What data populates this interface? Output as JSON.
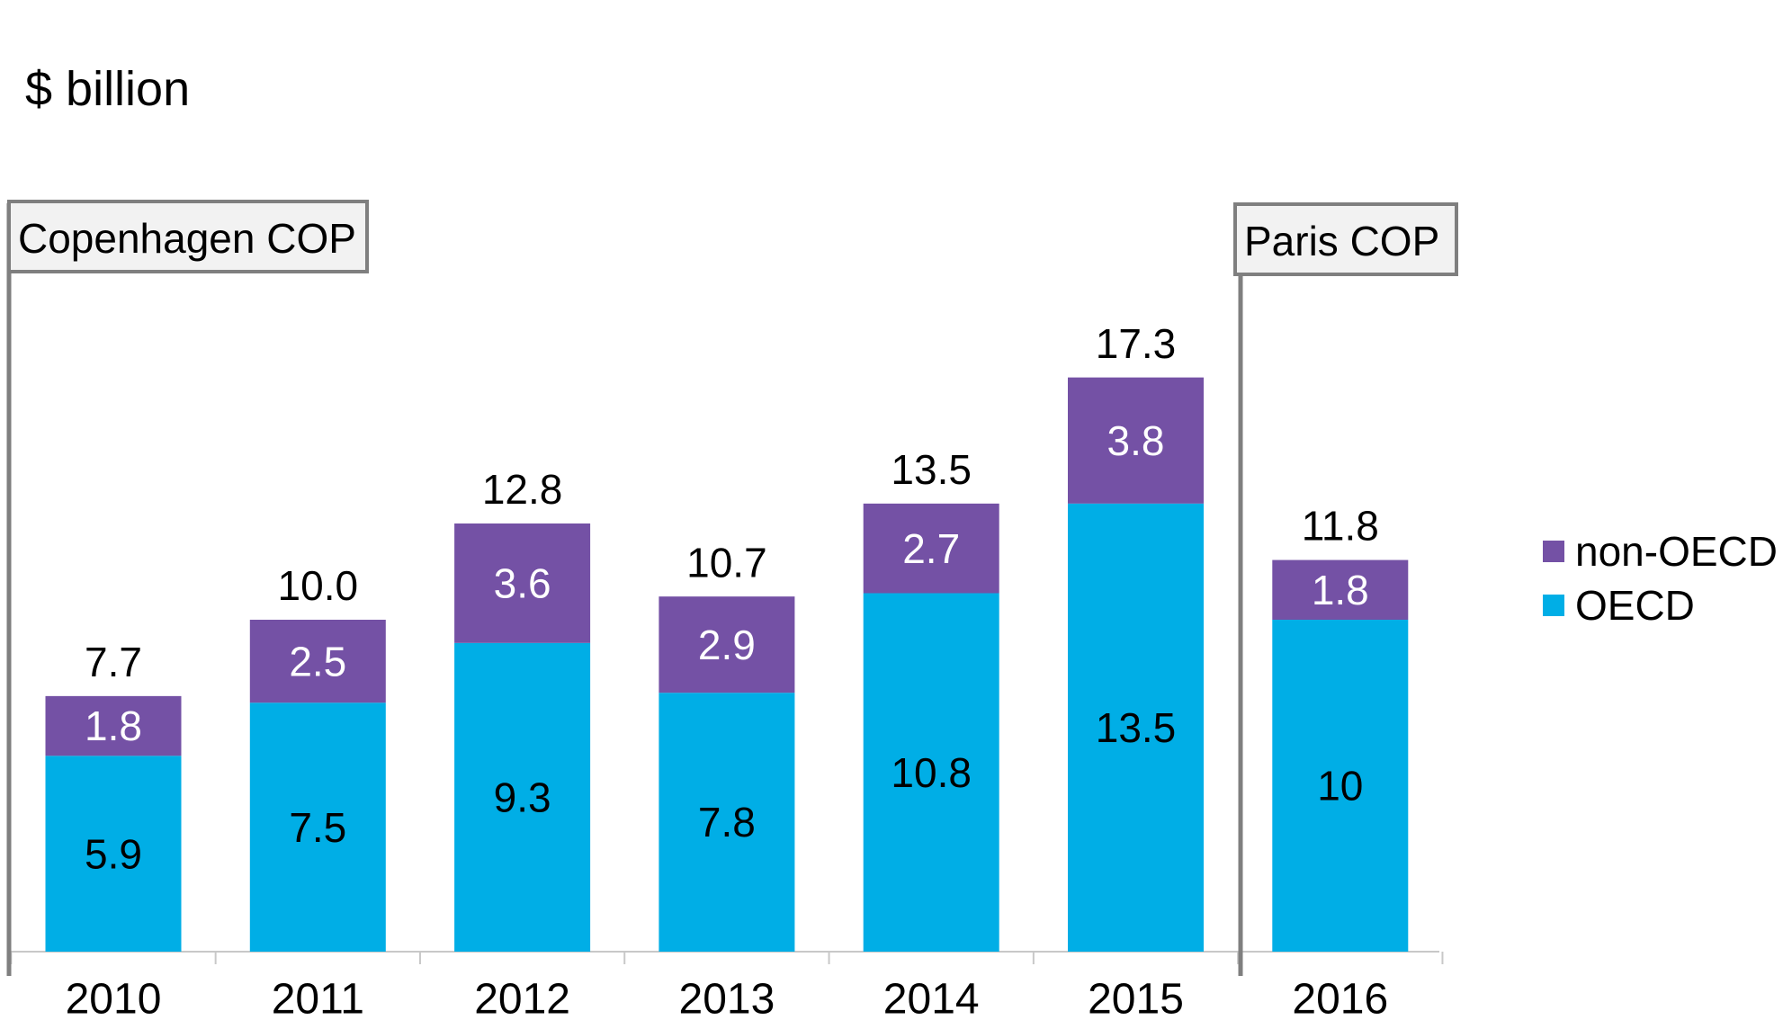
{
  "y_unit_label": "$ billion",
  "events": {
    "copenhagen": "Copenhagen COP",
    "paris": "Paris COP"
  },
  "colors": {
    "oecd": "#00aee6",
    "non_oecd": "#7451a5",
    "axis": "#c8c8c8",
    "event_border": "#7f7f7f"
  },
  "chart_data": {
    "type": "bar",
    "stacked": true,
    "ylabel": "$ billion",
    "categories": [
      "2010",
      "2011",
      "2012",
      "2013",
      "2014",
      "2015",
      "2016"
    ],
    "series": [
      {
        "name": "OECD",
        "values": [
          5.9,
          7.5,
          9.3,
          7.8,
          10.8,
          13.5,
          10
        ],
        "labels": [
          "5.9",
          "7.5",
          "9.3",
          "7.8",
          "10.8",
          "13.5",
          "10"
        ]
      },
      {
        "name": "non-OECD",
        "values": [
          1.8,
          2.5,
          3.6,
          2.9,
          2.7,
          3.8,
          1.8
        ],
        "labels": [
          "1.8",
          "2.5",
          "3.6",
          "2.9",
          "2.7",
          "3.8",
          "1.8"
        ]
      }
    ],
    "totals": [
      "7.7",
      "10.0",
      "12.8",
      "10.7",
      "13.5",
      "17.3",
      "11.8"
    ],
    "legend": [
      "non-OECD",
      "OECD"
    ],
    "legend_position": "right",
    "grid": false
  }
}
